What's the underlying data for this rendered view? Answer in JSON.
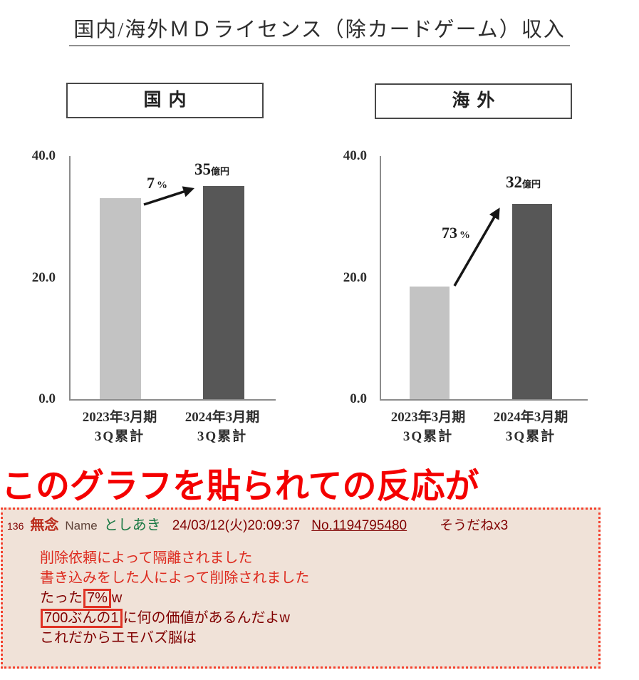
{
  "page_title": "国内/海外ＭＤライセンス（除カードゲーム）収入",
  "headline": "このグラフを貼られての反応が",
  "chart_data": [
    {
      "type": "bar",
      "panel": "国内",
      "categories": [
        "2023年3月期 3Q累計",
        "2024年3月期 3Q累計"
      ],
      "cat_lines": [
        [
          "2023年3月期",
          "3Q累計"
        ],
        [
          "2024年3月期",
          "3Q累計"
        ]
      ],
      "values": [
        33,
        35
      ],
      "yticks": [
        "40.0",
        "20.0",
        "0.0"
      ],
      "ylim": [
        0,
        40
      ],
      "grid": false,
      "legend": "none",
      "growth_num": "7",
      "growth_unit": "%",
      "value_num": "35",
      "value_unit": "億円",
      "bar_colors": [
        "#c3c3c3",
        "#575757"
      ]
    },
    {
      "type": "bar",
      "panel": "海外",
      "categories": [
        "2023年3月期 3Q累計",
        "2024年3月期 3Q累計"
      ],
      "cat_lines": [
        [
          "2023年3月期",
          "3Q累計"
        ],
        [
          "2024年3月期",
          "3Q累計"
        ]
      ],
      "values": [
        18.5,
        32
      ],
      "yticks": [
        "40.0",
        "20.0",
        "0.0"
      ],
      "ylim": [
        0,
        40
      ],
      "grid": false,
      "legend": "none",
      "growth_num": "73",
      "growth_unit": "%",
      "value_num": "32",
      "value_unit": "億円",
      "bar_colors": [
        "#c3c3c3",
        "#575757"
      ]
    }
  ],
  "post": {
    "number": "136",
    "subject": "無念",
    "name_label": "Name",
    "name": "としあき",
    "datetime": "24/03/12(火)20:09:37",
    "post_id": "No.1194795480",
    "soudane": "そうだねx3",
    "body": {
      "line1": "削除依頼によって隔離されました",
      "line2": "書き込みをした人によって削除されました",
      "line3_prefix": "たった",
      "line3_boxed": "7%",
      "line3_suffix": "w",
      "line4_boxed": "700ぶんの1",
      "line4_suffix": "に何の価値があるんだよw",
      "line5": "これだからエモバズ脳は"
    }
  },
  "colors": {
    "bar_light": "#c3c3c3",
    "bar_dark": "#575757",
    "axis_gray": "#8c8c8c",
    "chart_text": "#2e2e2e",
    "headline_red": "#f40000",
    "post_bg": "#f0e2d8",
    "post_border": "#f4412e",
    "deleted_red": "#dd2a1e",
    "maroon": "#800000",
    "subject_red": "#bb2b1b",
    "name_label": "#5f4339",
    "name_green": "#1b7a45",
    "box_red": "#e03224"
  }
}
